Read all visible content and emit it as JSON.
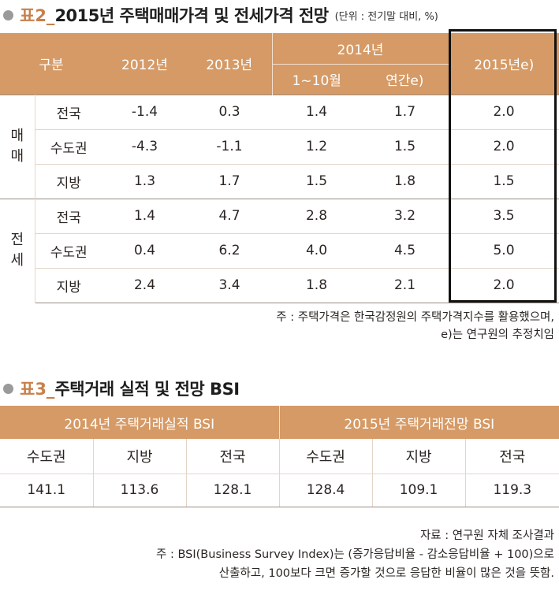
{
  "table2": {
    "prefix": "표2_",
    "title": "2015년 주택매매가격 및 전세가격 전망",
    "unit": "(단위 : 전기말 대비, %)",
    "header": {
      "category": "구분",
      "y2012": "2012년",
      "y2013": "2013년",
      "y2014": "2014년",
      "y2014_sub1": "1~10월",
      "y2014_sub2": "연간e)",
      "y2015": "2015년e)"
    },
    "groups": [
      {
        "name_line1": "매",
        "name_line2": "매",
        "rows": [
          {
            "region": "전국",
            "v2012": "-1.4",
            "v2013": "0.3",
            "v2014a": "1.4",
            "v2014b": "1.7",
            "v2015": "2.0"
          },
          {
            "region": "수도권",
            "v2012": "-4.3",
            "v2013": "-1.1",
            "v2014a": "1.2",
            "v2014b": "1.5",
            "v2015": "2.0"
          },
          {
            "region": "지방",
            "v2012": "1.3",
            "v2013": "1.7",
            "v2014a": "1.5",
            "v2014b": "1.8",
            "v2015": "1.5"
          }
        ]
      },
      {
        "name_line1": "전",
        "name_line2": "세",
        "rows": [
          {
            "region": "전국",
            "v2012": "1.4",
            "v2013": "4.7",
            "v2014a": "2.8",
            "v2014b": "3.2",
            "v2015": "3.5"
          },
          {
            "region": "수도권",
            "v2012": "0.4",
            "v2013": "6.2",
            "v2014a": "4.0",
            "v2014b": "4.5",
            "v2015": "5.0"
          },
          {
            "region": "지방",
            "v2012": "2.4",
            "v2013": "3.4",
            "v2014a": "1.8",
            "v2014b": "2.1",
            "v2015": "2.0"
          }
        ]
      }
    ],
    "note_line1": "주 : 주택가격은 한국감정원의 주택가격지수를 활용했으며,",
    "note_line2": "e)는 연구원의 추정치임"
  },
  "table3": {
    "prefix": "표3_",
    "title": "주택거래 실적 및 전망 BSI",
    "header_left": "2014년 주택거래실적 BSI",
    "header_right": "2015년 주택거래전망 BSI",
    "columns": [
      "수도권",
      "지방",
      "전국",
      "수도권",
      "지방",
      "전국"
    ],
    "values": [
      "141.1",
      "113.6",
      "128.1",
      "128.4",
      "109.1",
      "119.3"
    ],
    "source": "자료 : 연구원 자체 조사결과",
    "note_line1": "주 : BSI(Business Survey Index)는 (증가응답비율 - 감소응답비율 + 100)으로",
    "note_line2": "산출하고, 100보다 크면 증가할 것으로 응답한 비율이 많은 것을 뜻함."
  },
  "colors": {
    "header_bg": "#d59a66",
    "prefix_text": "#c8804c",
    "highlight_border": "#111111"
  }
}
